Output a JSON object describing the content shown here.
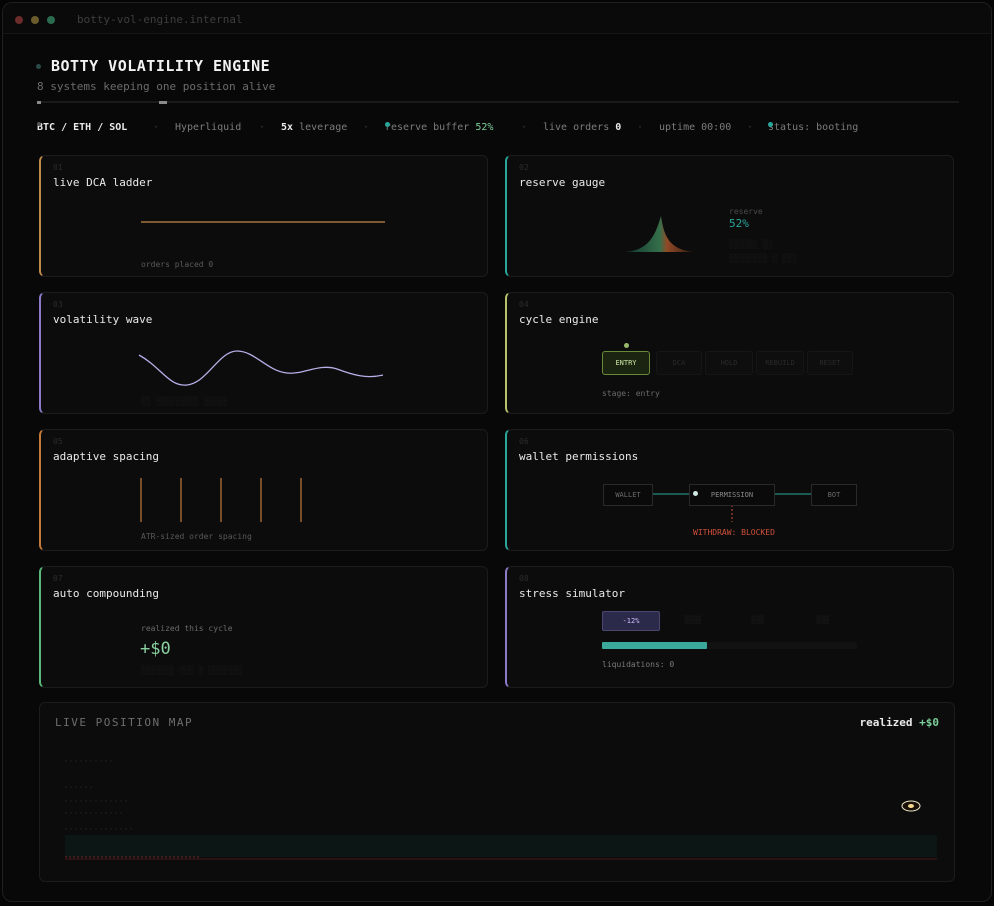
{
  "window": {
    "title": "botty-vol-engine.internal"
  },
  "header": {
    "title": "BOTTY VOLATILITY ENGINE",
    "subtitle": "8 systems keeping one position alive"
  },
  "status": {
    "pair": "BTC / ETH / SOL",
    "exchange": "Hyperliquid",
    "leverage_value": "5x",
    "leverage_label": "leverage",
    "reserve_label": "reserve buffer",
    "reserve_value": "52%",
    "orders_label": "live orders",
    "orders_value": "0",
    "uptime": "uptime 00:00",
    "state": "status: booting"
  },
  "cards": {
    "dca": {
      "num": "01",
      "title": "live DCA ladder",
      "caption": "orders placed  0"
    },
    "reserve": {
      "num": "02",
      "title": "reserve gauge",
      "label": "reserve",
      "value": "52%"
    },
    "volatility": {
      "num": "03",
      "title": "volatility wave"
    },
    "cycle": {
      "num": "04",
      "title": "cycle engine",
      "stages": [
        "ENTRY",
        "DCA",
        "HOLD",
        "REBUILD",
        "RESET"
      ],
      "stage_label": "stage: entry"
    },
    "spacing": {
      "num": "05",
      "title": "adaptive spacing",
      "caption": "ATR-sized order spacing",
      "bar_count": 5
    },
    "wallet": {
      "num": "06",
      "title": "wallet permissions",
      "wallet": "WALLET",
      "permission": "PERMISSION",
      "bot": "BOT",
      "withdraw": "WITHDRAW: BLOCKED"
    },
    "compounding": {
      "num": "07",
      "title": "auto compounding",
      "label": "realized this cycle",
      "value": "+$0"
    },
    "stress": {
      "num": "08",
      "title": "stress simulator",
      "options": [
        "-12%"
      ],
      "liquidations": "liquidations: 0",
      "fill_fraction": 0.41
    }
  },
  "map": {
    "title": "LIVE POSITION MAP",
    "realized_label": "realized",
    "realized_value": "+$0"
  },
  "colors": {
    "dca": "#c08a4a",
    "reserve": "#2aa69a",
    "volatility": "#8c7ac8",
    "cycle": "#b8c06a",
    "spacing": "#c47a3a",
    "wallet": "#2aa69a",
    "compounding": "#5ab87a",
    "stress": "#8c7ac8",
    "withdraw": "#d0503a"
  }
}
